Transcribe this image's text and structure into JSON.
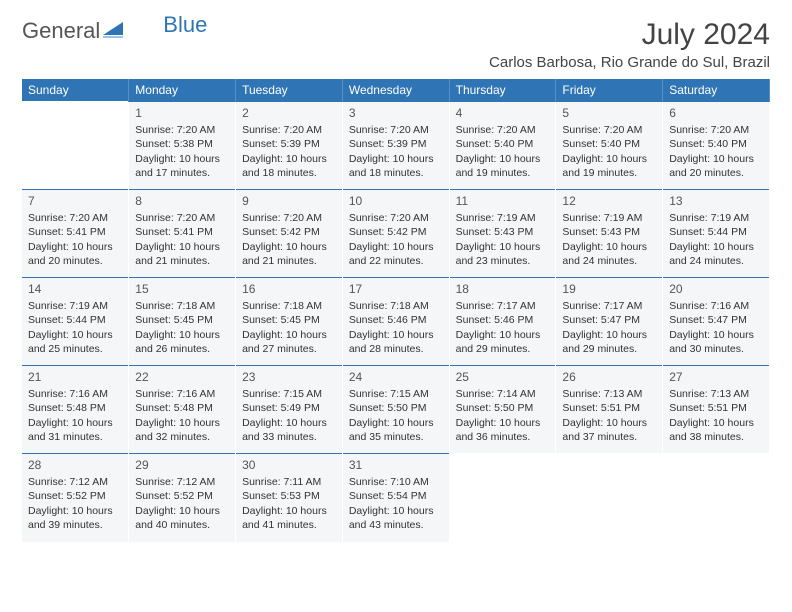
{
  "logo": {
    "text1": "General",
    "text2": "Blue"
  },
  "title": "July 2024",
  "location": "Carlos Barbosa, Rio Grande do Sul, Brazil",
  "colors": {
    "header_bg": "#2f75b5",
    "header_fg": "#ffffff",
    "cell_bg": "#f5f6f7",
    "cell_border": "#2f75b5",
    "text": "#333333",
    "logo_gray": "#555555",
    "logo_blue": "#2f75b5"
  },
  "dayHeaders": [
    "Sunday",
    "Monday",
    "Tuesday",
    "Wednesday",
    "Thursday",
    "Friday",
    "Saturday"
  ],
  "startOffset": 1,
  "days": [
    {
      "n": 1,
      "sunrise": "7:20 AM",
      "sunset": "5:38 PM",
      "daylight": "10 hours and 17 minutes."
    },
    {
      "n": 2,
      "sunrise": "7:20 AM",
      "sunset": "5:39 PM",
      "daylight": "10 hours and 18 minutes."
    },
    {
      "n": 3,
      "sunrise": "7:20 AM",
      "sunset": "5:39 PM",
      "daylight": "10 hours and 18 minutes."
    },
    {
      "n": 4,
      "sunrise": "7:20 AM",
      "sunset": "5:40 PM",
      "daylight": "10 hours and 19 minutes."
    },
    {
      "n": 5,
      "sunrise": "7:20 AM",
      "sunset": "5:40 PM",
      "daylight": "10 hours and 19 minutes."
    },
    {
      "n": 6,
      "sunrise": "7:20 AM",
      "sunset": "5:40 PM",
      "daylight": "10 hours and 20 minutes."
    },
    {
      "n": 7,
      "sunrise": "7:20 AM",
      "sunset": "5:41 PM",
      "daylight": "10 hours and 20 minutes."
    },
    {
      "n": 8,
      "sunrise": "7:20 AM",
      "sunset": "5:41 PM",
      "daylight": "10 hours and 21 minutes."
    },
    {
      "n": 9,
      "sunrise": "7:20 AM",
      "sunset": "5:42 PM",
      "daylight": "10 hours and 21 minutes."
    },
    {
      "n": 10,
      "sunrise": "7:20 AM",
      "sunset": "5:42 PM",
      "daylight": "10 hours and 22 minutes."
    },
    {
      "n": 11,
      "sunrise": "7:19 AM",
      "sunset": "5:43 PM",
      "daylight": "10 hours and 23 minutes."
    },
    {
      "n": 12,
      "sunrise": "7:19 AM",
      "sunset": "5:43 PM",
      "daylight": "10 hours and 24 minutes."
    },
    {
      "n": 13,
      "sunrise": "7:19 AM",
      "sunset": "5:44 PM",
      "daylight": "10 hours and 24 minutes."
    },
    {
      "n": 14,
      "sunrise": "7:19 AM",
      "sunset": "5:44 PM",
      "daylight": "10 hours and 25 minutes."
    },
    {
      "n": 15,
      "sunrise": "7:18 AM",
      "sunset": "5:45 PM",
      "daylight": "10 hours and 26 minutes."
    },
    {
      "n": 16,
      "sunrise": "7:18 AM",
      "sunset": "5:45 PM",
      "daylight": "10 hours and 27 minutes."
    },
    {
      "n": 17,
      "sunrise": "7:18 AM",
      "sunset": "5:46 PM",
      "daylight": "10 hours and 28 minutes."
    },
    {
      "n": 18,
      "sunrise": "7:17 AM",
      "sunset": "5:46 PM",
      "daylight": "10 hours and 29 minutes."
    },
    {
      "n": 19,
      "sunrise": "7:17 AM",
      "sunset": "5:47 PM",
      "daylight": "10 hours and 29 minutes."
    },
    {
      "n": 20,
      "sunrise": "7:16 AM",
      "sunset": "5:47 PM",
      "daylight": "10 hours and 30 minutes."
    },
    {
      "n": 21,
      "sunrise": "7:16 AM",
      "sunset": "5:48 PM",
      "daylight": "10 hours and 31 minutes."
    },
    {
      "n": 22,
      "sunrise": "7:16 AM",
      "sunset": "5:48 PM",
      "daylight": "10 hours and 32 minutes."
    },
    {
      "n": 23,
      "sunrise": "7:15 AM",
      "sunset": "5:49 PM",
      "daylight": "10 hours and 33 minutes."
    },
    {
      "n": 24,
      "sunrise": "7:15 AM",
      "sunset": "5:50 PM",
      "daylight": "10 hours and 35 minutes."
    },
    {
      "n": 25,
      "sunrise": "7:14 AM",
      "sunset": "5:50 PM",
      "daylight": "10 hours and 36 minutes."
    },
    {
      "n": 26,
      "sunrise": "7:13 AM",
      "sunset": "5:51 PM",
      "daylight": "10 hours and 37 minutes."
    },
    {
      "n": 27,
      "sunrise": "7:13 AM",
      "sunset": "5:51 PM",
      "daylight": "10 hours and 38 minutes."
    },
    {
      "n": 28,
      "sunrise": "7:12 AM",
      "sunset": "5:52 PM",
      "daylight": "10 hours and 39 minutes."
    },
    {
      "n": 29,
      "sunrise": "7:12 AM",
      "sunset": "5:52 PM",
      "daylight": "10 hours and 40 minutes."
    },
    {
      "n": 30,
      "sunrise": "7:11 AM",
      "sunset": "5:53 PM",
      "daylight": "10 hours and 41 minutes."
    },
    {
      "n": 31,
      "sunrise": "7:10 AM",
      "sunset": "5:54 PM",
      "daylight": "10 hours and 43 minutes."
    }
  ],
  "labels": {
    "sunrise": "Sunrise: ",
    "sunset": "Sunset: ",
    "daylight": "Daylight: "
  }
}
